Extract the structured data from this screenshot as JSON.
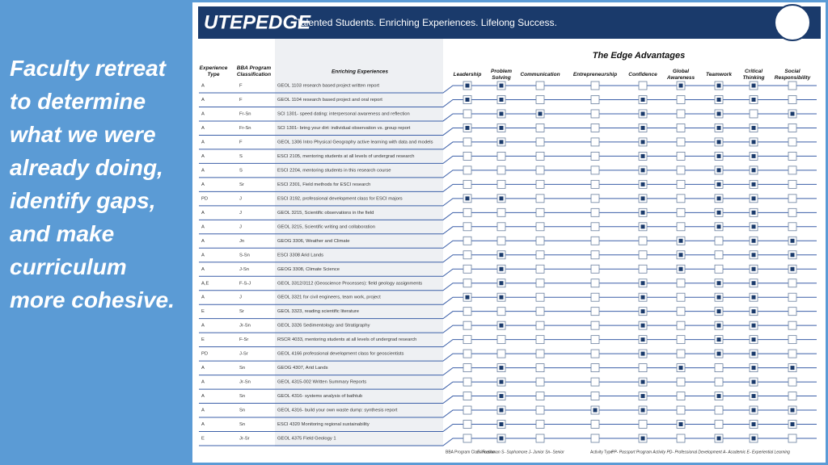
{
  "slide": {
    "text": "Faculty retreat to determine what we were already doing, identify gaps, and make curriculum more cohesive."
  },
  "header": {
    "logo": "UTEPEDGE",
    "tagline": "Talented Students. Enriching Experiences. Lifelong Success."
  },
  "table": {
    "title": "The Edge Advantages",
    "columns": [
      "Experience Type",
      "BBA Program Classification",
      "Enriching Experiences"
    ],
    "advantages": [
      "Leadership",
      "Problem Solving",
      "Communication",
      "Entrepreneurship",
      "Confidence",
      "Global Awareness",
      "Teamwork",
      "Critical Thinking",
      "Social Responsibility"
    ],
    "rows": [
      [
        "A",
        "F",
        "GEOL 1103 research based project written report"
      ],
      [
        "A",
        "F",
        "GEOL 1104 research based project and oral report"
      ],
      [
        "A",
        "Fr-Sn",
        "SCI 1301- speed dating: interpersonal awareness and reflection"
      ],
      [
        "A",
        "Fr-Sn",
        "SCI 1301- bring your dirt: individual observation vs. group report"
      ],
      [
        "A",
        "F",
        "GEOL 1306 Intro Physical Geography active learning with data and models"
      ],
      [
        "A",
        "S",
        "ESCI 2105, mentoring students at all levels of undergrad research"
      ],
      [
        "A",
        "S",
        "ESCI 2204, mentoring students in this research course"
      ],
      [
        "A",
        "Sr",
        "ESCI 2301, Field methods for ESCI research"
      ],
      [
        "PD",
        "J",
        "ESCI 3192, professional development class for ESCI majors"
      ],
      [
        "A",
        "J",
        "GEOL 3215, Scientific observations in the field"
      ],
      [
        "A",
        "J",
        "GEOL 3215, Scientific writing and collaboration"
      ],
      [
        "A",
        "Jn",
        "GEOG 3306, Weather and Climate"
      ],
      [
        "A",
        "S-Sn",
        "ESCI 3308 Arid Lands"
      ],
      [
        "A",
        "J-Sn",
        "GEOG 3308, Climate Science"
      ],
      [
        "A,E",
        "F-S-J",
        "GEOL 3312/3112 (Geoscience Processes): field geology assignments"
      ],
      [
        "A",
        "J",
        "GEOL 3321 for civil engineers, team work, project"
      ],
      [
        "E",
        "Sr",
        "GEOL 3323, reading scientific literature"
      ],
      [
        "A",
        "Jr-Sn",
        "GEOL 3326 Sedimentology and Stratigraphy"
      ],
      [
        "E",
        "F-Sr",
        "RSCR 4033, mentoring students at all levels of undergrad research"
      ],
      [
        "PD",
        "J-Sr",
        "GEOL 4166 professional development class for geoscientists"
      ],
      [
        "A",
        "Sn",
        "GEOG 4307, Arid Lands"
      ],
      [
        "A",
        "Jr-Sn",
        "GEOL 4315-002 Written Summary Reports"
      ],
      [
        "A",
        "Sn",
        "GEOL 4316- systems analysis of bathtub"
      ],
      [
        "A",
        "Sn",
        "GEOL 4316- build your own waste dump: synthesis report"
      ],
      [
        "A",
        "Sn",
        "ESCI 4320 Monitoring regional sustainability"
      ],
      [
        "E",
        "Jr-Sr",
        "GEOL 4375 Field Geology 1"
      ]
    ],
    "checks": [
      [
        1,
        1,
        0,
        0,
        0,
        1,
        1,
        1,
        0
      ],
      [
        1,
        1,
        0,
        0,
        1,
        0,
        1,
        1,
        0
      ],
      [
        0,
        1,
        1,
        0,
        1,
        0,
        1,
        0,
        1
      ],
      [
        1,
        1,
        0,
        0,
        1,
        0,
        1,
        1,
        0
      ],
      [
        0,
        1,
        0,
        0,
        1,
        0,
        1,
        1,
        0
      ],
      [
        0,
        0,
        0,
        0,
        1,
        0,
        1,
        1,
        0
      ],
      [
        0,
        0,
        0,
        0,
        1,
        0,
        1,
        1,
        0
      ],
      [
        0,
        0,
        0,
        0,
        1,
        0,
        1,
        1,
        0
      ],
      [
        1,
        1,
        0,
        0,
        1,
        0,
        1,
        1,
        0
      ],
      [
        0,
        0,
        0,
        0,
        1,
        0,
        1,
        1,
        0
      ],
      [
        0,
        0,
        0,
        0,
        1,
        0,
        1,
        1,
        0
      ],
      [
        0,
        0,
        0,
        0,
        0,
        1,
        0,
        1,
        1
      ],
      [
        0,
        1,
        0,
        0,
        0,
        1,
        0,
        1,
        1
      ],
      [
        0,
        1,
        0,
        0,
        0,
        1,
        0,
        1,
        1
      ],
      [
        0,
        1,
        0,
        0,
        1,
        0,
        1,
        1,
        0
      ],
      [
        1,
        1,
        0,
        0,
        1,
        0,
        1,
        1,
        0
      ],
      [
        0,
        0,
        0,
        0,
        1,
        0,
        1,
        1,
        0
      ],
      [
        0,
        1,
        0,
        0,
        1,
        0,
        1,
        1,
        0
      ],
      [
        0,
        0,
        0,
        0,
        1,
        0,
        1,
        1,
        0
      ],
      [
        0,
        0,
        0,
        0,
        1,
        0,
        1,
        1,
        0
      ],
      [
        0,
        1,
        0,
        0,
        0,
        1,
        0,
        1,
        1
      ],
      [
        0,
        1,
        0,
        0,
        1,
        0,
        0,
        1,
        0
      ],
      [
        0,
        1,
        0,
        0,
        1,
        0,
        1,
        1,
        0
      ],
      [
        0,
        1,
        0,
        1,
        1,
        0,
        0,
        1,
        1
      ],
      [
        0,
        1,
        0,
        0,
        0,
        1,
        0,
        1,
        1
      ],
      [
        0,
        1,
        0,
        0,
        1,
        0,
        1,
        1,
        0
      ]
    ]
  },
  "legend": {
    "class_title": "BBA Program Classification",
    "class_text": "F- Freshman  S- Sophomore  J- Junior  Sn- Senior",
    "type_title": "Activity Type",
    "type_text": "PP- Passport Program Activity  PD- Professional Development  A- Academic  E- Experiential Learning"
  }
}
